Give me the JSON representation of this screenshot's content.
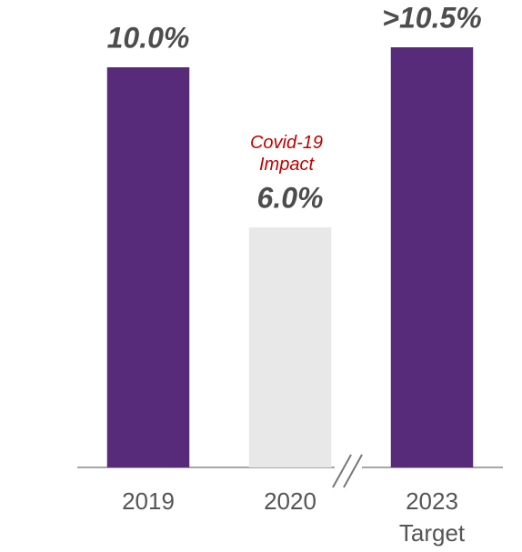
{
  "chart_data": {
    "type": "bar",
    "categories": [
      "2019",
      "2020",
      "2023 Target"
    ],
    "values": [
      10,
      6,
      10.5
    ],
    "value_labels": [
      "10.0%",
      "6.0%",
      ">10.5%"
    ],
    "colors": [
      "#582a7a",
      "#e8e8e8",
      "#582a7a"
    ],
    "annotation": "Covid-19 Impact",
    "ylim": [
      0,
      10.5
    ]
  }
}
